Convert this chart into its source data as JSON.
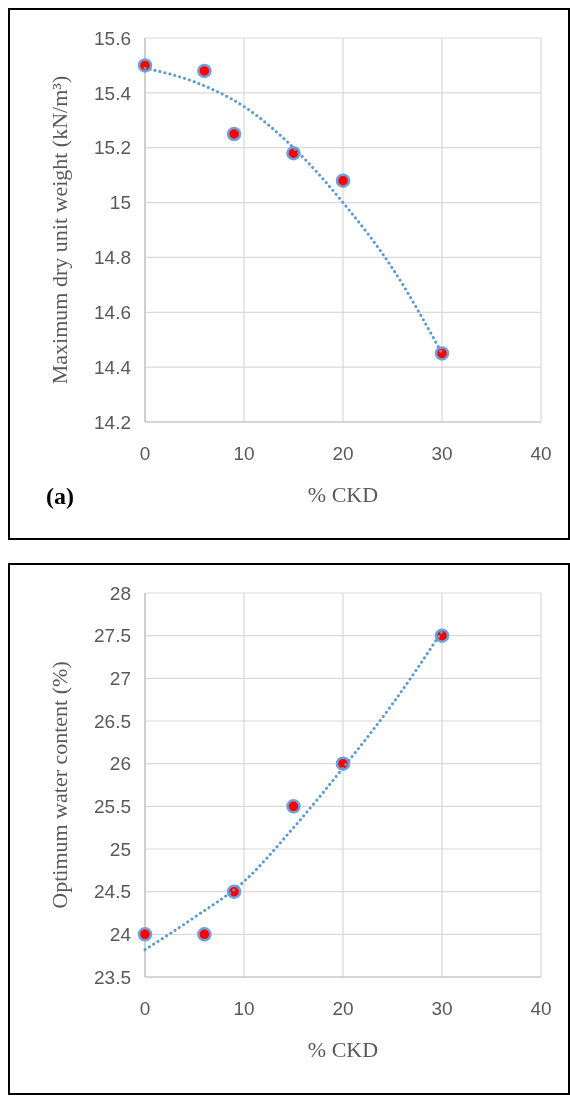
{
  "chart_data": [
    {
      "type": "scatter",
      "xlabel": "% CKD",
      "ylabel": "Maximum dry unit weight (kN/m³)",
      "annotations": [
        "(a)"
      ],
      "xlim": [
        0,
        40
      ],
      "xticks": [
        0,
        10,
        20,
        30,
        40
      ],
      "ylim": [
        14.2,
        15.6
      ],
      "yticks": [
        14.2,
        14.4,
        14.6,
        14.8,
        15,
        15.2,
        15.4,
        15.6
      ],
      "grid": true,
      "series": [
        {
          "color": "#ff0000",
          "marker": "circle",
          "x": [
            0,
            6,
            9,
            15,
            20,
            30
          ],
          "values": [
            15.5,
            15.48,
            15.25,
            15.18,
            15.08,
            14.45
          ]
        },
        {
          "type": "line",
          "color": "#5b9bd5",
          "line_style": "dotted",
          "marker": "none",
          "x": [
            0,
            5,
            10,
            15,
            20,
            25,
            30
          ],
          "values": [
            15.49,
            15.44,
            15.35,
            15.2,
            15.0,
            14.76,
            14.45
          ]
        }
      ]
    },
    {
      "type": "scatter",
      "xlabel": "% CKD",
      "ylabel": "Optimum water content (%)",
      "xlim": [
        0,
        40
      ],
      "xticks": [
        0,
        10,
        20,
        30,
        40
      ],
      "ylim": [
        23.5,
        28
      ],
      "yticks": [
        23.5,
        24,
        24.5,
        25,
        25.5,
        26,
        26.5,
        27,
        27.5,
        28
      ],
      "grid": true,
      "series": [
        {
          "color": "#ff0000",
          "marker": "circle",
          "x": [
            0,
            6,
            9,
            15,
            20,
            30
          ],
          "values": [
            24,
            24,
            24.5,
            25.5,
            26,
            27.5
          ]
        },
        {
          "type": "line",
          "color": "#5b9bd5",
          "line_style": "dotted",
          "marker": "none",
          "x": [
            0,
            5,
            10,
            15,
            20,
            25,
            30
          ],
          "values": [
            23.82,
            24.2,
            24.62,
            25.25,
            25.95,
            26.7,
            27.55
          ]
        }
      ]
    }
  ]
}
